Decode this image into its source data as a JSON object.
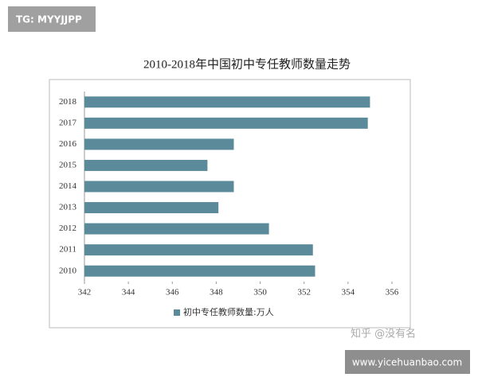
{
  "chart_data": {
    "type": "hbar",
    "title": "2010-2018年中国初中专任教师数量走势",
    "categories": [
      "2018",
      "2017",
      "2016",
      "2015",
      "2014",
      "2013",
      "2012",
      "2011",
      "2010"
    ],
    "series": [
      {
        "name": "初中专任教师数量:万人",
        "color": "#5b8a9b",
        "values": [
          355.0,
          354.9,
          348.8,
          347.6,
          348.8,
          348.1,
          350.4,
          352.4,
          352.5
        ]
      }
    ],
    "xlim": [
      342,
      356
    ],
    "xticks": [
      342,
      344,
      346,
      348,
      350,
      352,
      354,
      356
    ],
    "legend": "bottom"
  },
  "overlays": {
    "tag": "TG: MYYJJPP",
    "credit": "知乎 @没有名",
    "site": "www.yicehuanbao.com"
  }
}
